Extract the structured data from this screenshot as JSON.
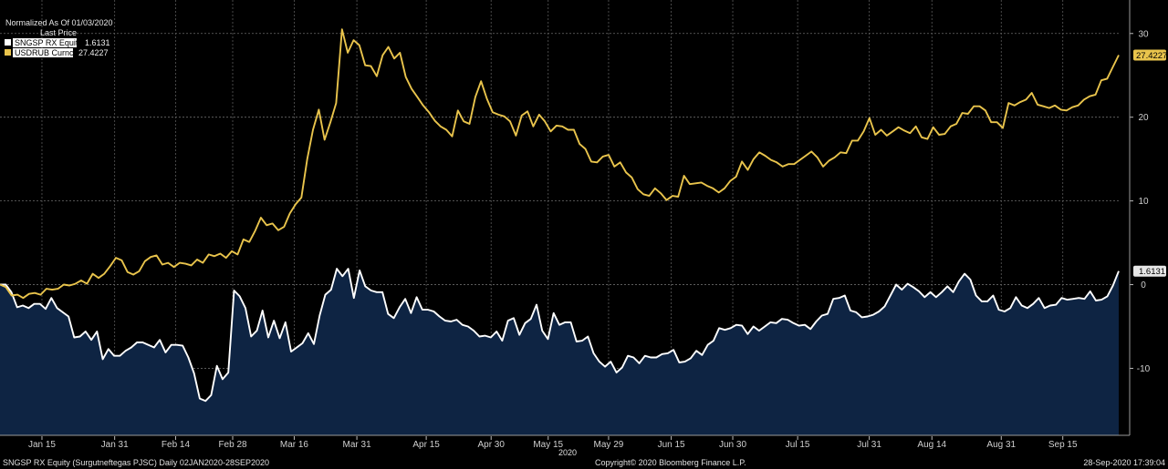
{
  "chart_data": {
    "type": "line",
    "title": "Normalized As Of 01/03/2020",
    "legend_header": "Last Price",
    "legend_placement": "top-left",
    "grid": true,
    "y_axis_side": "right",
    "ylim": [
      -18,
      34
    ],
    "yticks": [
      30,
      20,
      10,
      0,
      -10
    ],
    "ytick_labels": [
      "30",
      "20",
      "10",
      "0",
      "-10"
    ],
    "xlim": [
      0,
      1
    ],
    "xticks": [
      {
        "label": "Jan 15",
        "pos": 0.0375
      },
      {
        "label": "Jan 31",
        "pos": 0.1025
      },
      {
        "label": "Feb 14",
        "pos": 0.157
      },
      {
        "label": "Feb 28",
        "pos": 0.208
      },
      {
        "label": "Mar 16",
        "pos": 0.263
      },
      {
        "label": "Mar 31",
        "pos": 0.319
      },
      {
        "label": "Apr 15",
        "pos": 0.381
      },
      {
        "label": "Apr 30",
        "pos": 0.439
      },
      {
        "label": "May 15",
        "pos": 0.49
      },
      {
        "label": "May 29",
        "pos": 0.544
      },
      {
        "label": "Jun 15",
        "pos": 0.6
      },
      {
        "label": "Jun 30",
        "pos": 0.655
      },
      {
        "label": "Jul 15",
        "pos": 0.713
      },
      {
        "label": "Jul 31",
        "pos": 0.777
      },
      {
        "label": "Aug 14",
        "pos": 0.833
      },
      {
        "label": "Aug 31",
        "pos": 0.895
      },
      {
        "label": "Sep 15",
        "pos": 0.95
      }
    ],
    "x_year_label": "2020",
    "series": [
      {
        "name": "SNGSP RX Equity",
        "last_value": "1.6131",
        "color": "#ffffff",
        "fill": "#0e2443",
        "values": [
          0,
          0,
          -0.9,
          -2.7,
          -2.5,
          -2.8,
          -2.3,
          -2.3,
          -2.9,
          -1.6,
          -2.8,
          -3.3,
          -3.8,
          -6.3,
          -6.2,
          -5.6,
          -6.6,
          -5.6,
          -8.9,
          -7.7,
          -8.5,
          -8.5,
          -7.9,
          -7.5,
          -6.9,
          -6.9,
          -7.2,
          -7.5,
          -6.6,
          -8.1,
          -7.2,
          -7.2,
          -7.3,
          -8.7,
          -10.6,
          -13.6,
          -13.9,
          -13.2,
          -9.7,
          -11.3,
          -10.5,
          -0.7,
          -1.4,
          -2.8,
          -6.2,
          -5.5,
          -3.1,
          -6.3,
          -4.3,
          -6.4,
          -4.5,
          -8.0,
          -7.5,
          -7.0,
          -5.8,
          -7.1,
          -3.7,
          -1.2,
          -0.6,
          1.9,
          1.0,
          1.9,
          -1.6,
          1.7,
          -0.2,
          -0.7,
          -0.9,
          -0.9,
          -3.5,
          -4.0,
          -2.7,
          -1.7,
          -3.4,
          -1.5,
          -3.0,
          -3.0,
          -3.2,
          -3.8,
          -4.3,
          -4.4,
          -4.2,
          -4.8,
          -5.0,
          -5.5,
          -6.2,
          -6.1,
          -6.3,
          -5.6,
          -6.7,
          -4.3,
          -4.0,
          -6.0,
          -4.6,
          -4.1,
          -2.4,
          -5.5,
          -6.5,
          -3.4,
          -4.8,
          -4.5,
          -4.5,
          -6.8,
          -6.7,
          -6.2,
          -8.2,
          -9.2,
          -9.8,
          -9.2,
          -10.5,
          -9.9,
          -8.5,
          -8.7,
          -9.4,
          -8.5,
          -8.7,
          -8.7,
          -8.3,
          -8.2,
          -7.8,
          -9.3,
          -9.2,
          -8.8,
          -7.9,
          -8.4,
          -7.2,
          -6.7,
          -5.2,
          -5.4,
          -5.2,
          -4.8,
          -4.9,
          -5.9,
          -5.0,
          -5.5,
          -5.0,
          -4.5,
          -4.6,
          -4.1,
          -4.2,
          -4.6,
          -4.9,
          -4.8,
          -5.3,
          -4.4,
          -3.7,
          -3.5,
          -1.7,
          -1.6,
          -1.3,
          -3.1,
          -3.3,
          -3.9,
          -3.8,
          -3.6,
          -3.2,
          -2.6,
          -1.3,
          0,
          -0.6,
          0.1,
          -0.3,
          -0.8,
          -1.5,
          -0.9,
          -1.5,
          -0.9,
          -0.2,
          -0.9,
          0.4,
          1.3,
          0.6,
          -1.3,
          -2.0,
          -2.0,
          -1.3,
          -3.0,
          -3.2,
          -2.8,
          -1.5,
          -2.5,
          -2.8,
          -2.3,
          -1.6,
          -2.8,
          -2.5,
          -2.4,
          -1.6,
          -1.8,
          -1.7,
          -1.6,
          -1.7,
          -0.8,
          -1.9,
          -1.8,
          -1.4,
          -0.1,
          1.6131
        ]
      },
      {
        "name": "USDRUB Curncy",
        "last_value": "27.4227",
        "color": "#e9c44c",
        "values": [
          0,
          -0.3,
          -1.3,
          -1.2,
          -1.6,
          -1.1,
          -1.0,
          -1.2,
          -0.5,
          -0.6,
          -0.5,
          0,
          -0.1,
          0.1,
          0.5,
          0.1,
          1.3,
          0.8,
          1.3,
          2.2,
          3.2,
          2.9,
          1.5,
          1.2,
          1.6,
          2.8,
          3.3,
          3.5,
          2.4,
          2.6,
          2.1,
          2.6,
          2.5,
          2.3,
          3.0,
          2.6,
          3.6,
          3.4,
          3.7,
          3.2,
          4.0,
          3.6,
          5.4,
          5.1,
          6.4,
          8.0,
          7.1,
          7.3,
          6.5,
          6.9,
          8.5,
          9.6,
          10.4,
          15.0,
          18.5,
          20.9,
          17.3,
          19.4,
          21.7,
          30.5,
          27.7,
          29.2,
          28.6,
          26.2,
          26.1,
          24.9,
          27.4,
          28.4,
          27.0,
          27.7,
          24.8,
          23.4,
          22.4,
          21.4,
          20.6,
          19.6,
          18.9,
          18.5,
          17.7,
          20.8,
          19.5,
          19.2,
          22.4,
          24.3,
          22.2,
          20.6,
          20.3,
          20.1,
          19.5,
          17.8,
          20.2,
          20.7,
          18.9,
          20.3,
          19.5,
          18.3,
          19.0,
          18.9,
          18.5,
          18.5,
          16.8,
          16.2,
          14.7,
          14.6,
          15.3,
          15.5,
          14.1,
          14.6,
          13.4,
          12.8,
          11.4,
          10.8,
          10.6,
          11.5,
          10.9,
          10.1,
          10.6,
          10.5,
          13.0,
          12.0,
          12.1,
          12.2,
          11.8,
          11.5,
          11.0,
          11.5,
          12.4,
          12.9,
          14.7,
          13.7,
          15.0,
          15.8,
          15.4,
          14.9,
          14.6,
          14.1,
          14.4,
          14.4,
          14.9,
          15.4,
          15.9,
          15.2,
          14.1,
          14.8,
          15.2,
          15.8,
          15.7,
          17.2,
          17.2,
          18.3,
          19.9,
          17.9,
          18.5,
          17.8,
          18.3,
          18.8,
          18.4,
          18.1,
          18.9,
          17.6,
          17.4,
          18.8,
          17.9,
          18.0,
          18.9,
          19.2,
          20.5,
          20.4,
          21.3,
          21.3,
          20.8,
          19.4,
          19.4,
          18.7,
          21.7,
          21.4,
          21.8,
          22.1,
          22.9,
          21.5,
          21.3,
          21.1,
          21.4,
          20.9,
          20.8,
          21.2,
          21.4,
          22.1,
          22.5,
          22.7,
          24.4,
          24.6,
          26.0,
          27.4227
        ]
      }
    ]
  },
  "footer": {
    "left": "SNGSP RX Equity (Surgutneftegas PJSC)  Daily 02JAN2020-28SEP2020",
    "center": "Copyright© 2020 Bloomberg Finance L.P.",
    "right": "28-Sep-2020 17:39:04"
  }
}
